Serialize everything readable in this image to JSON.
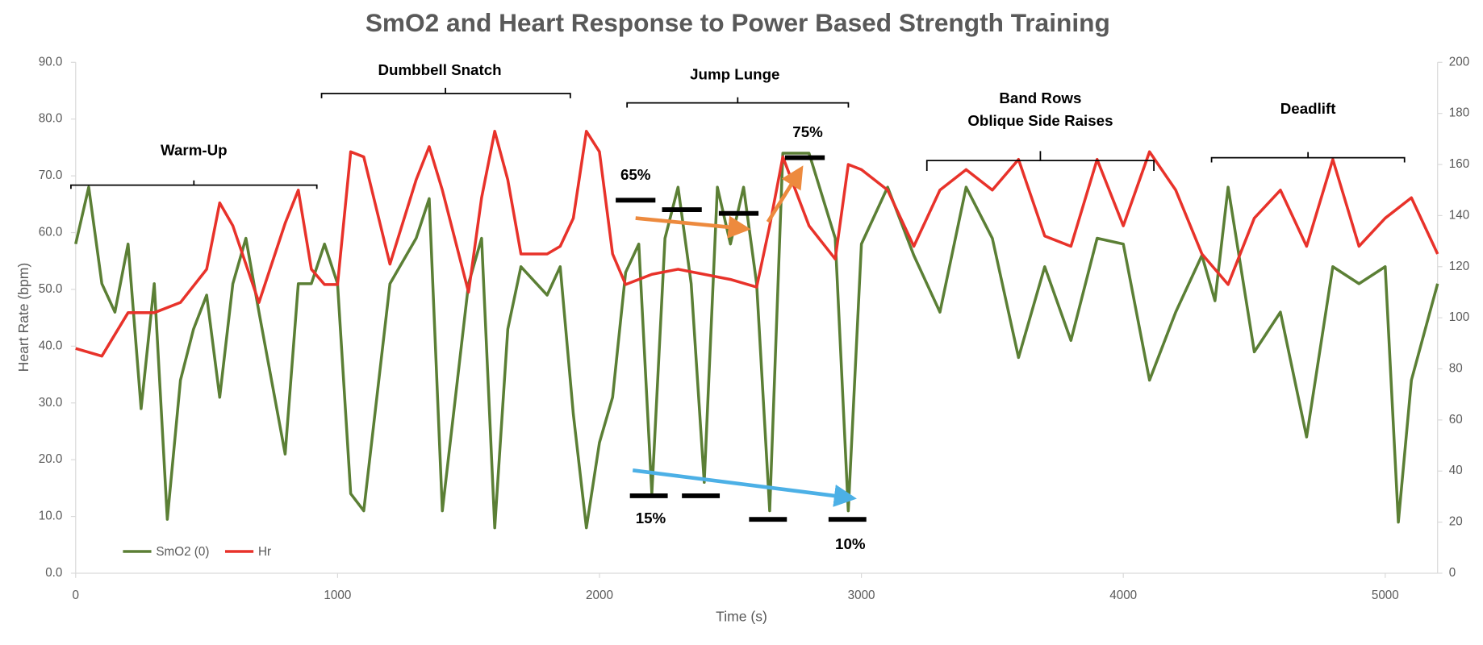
{
  "chart_data": {
    "type": "line",
    "title": "SmO2  and Heart Response to Power Based Strength Training",
    "xlabel": "Time (s)",
    "ylabel": "Heart Rate (bpm)",
    "xlim": [
      0,
      5200
    ],
    "xticks": [
      0,
      1000,
      2000,
      3000,
      4000,
      5000
    ],
    "ylim": [
      0,
      90
    ],
    "yticks": [
      {
        "value": 0,
        "label": "0.0"
      },
      {
        "value": 10,
        "label": "10.0"
      },
      {
        "value": 20,
        "label": "20.0"
      },
      {
        "value": 30,
        "label": "30.0"
      },
      {
        "value": 40,
        "label": "40.0"
      },
      {
        "value": 50,
        "label": "50.0"
      },
      {
        "value": 60,
        "label": "60.0"
      },
      {
        "value": 70,
        "label": "70.0"
      },
      {
        "value": 80,
        "label": "80.0"
      },
      {
        "value": 90,
        "label": "90.0"
      }
    ],
    "y2lim": [
      0,
      200
    ],
    "y2ticks": [
      0,
      20,
      40,
      60,
      80,
      100,
      120,
      140,
      160,
      180,
      200
    ],
    "legend": "lower left",
    "series": [
      {
        "name": "SmO2 (0)",
        "color": "#5b7f35",
        "axis": "y",
        "x": [
          0,
          50,
          100,
          150,
          200,
          250,
          300,
          350,
          400,
          450,
          500,
          550,
          600,
          650,
          700,
          800,
          850,
          900,
          950,
          1000,
          1050,
          1100,
          1200,
          1300,
          1350,
          1400,
          1500,
          1550,
          1600,
          1650,
          1700,
          1800,
          1850,
          1900,
          1950,
          2000,
          2050,
          2100,
          2150,
          2200,
          2250,
          2300,
          2350,
          2400,
          2450,
          2500,
          2550,
          2600,
          2650,
          2700,
          2800,
          2900,
          2950,
          3000,
          3100,
          3200,
          3300,
          3400,
          3500,
          3600,
          3700,
          3800,
          3900,
          4000,
          4100,
          4200,
          4300,
          4350,
          4400,
          4500,
          4600,
          4700,
          4800,
          4900,
          5000,
          5050,
          5100,
          5200
        ],
        "values": [
          58,
          68,
          51,
          46,
          58,
          29,
          51,
          9.5,
          34,
          43,
          49,
          31,
          51,
          59,
          46,
          21,
          51,
          51,
          58,
          51,
          14,
          11,
          51,
          59,
          66,
          11,
          51,
          59,
          8,
          43,
          54,
          49,
          54,
          28,
          8,
          23,
          31,
          53,
          58,
          14,
          59,
          68,
          51,
          16,
          68,
          58,
          68,
          51,
          11,
          74,
          74,
          59,
          11,
          58,
          68,
          56,
          46,
          68,
          59,
          38,
          54,
          41,
          59,
          58,
          34,
          46,
          56,
          48,
          68,
          39,
          46,
          24,
          54,
          51,
          54,
          9,
          34,
          51
        ]
      },
      {
        "name": "Hr",
        "color": "#e8322a",
        "axis": "y2",
        "x": [
          0,
          100,
          200,
          300,
          400,
          500,
          550,
          600,
          700,
          800,
          850,
          900,
          950,
          1000,
          1050,
          1100,
          1200,
          1300,
          1350,
          1400,
          1500,
          1550,
          1600,
          1650,
          1700,
          1800,
          1850,
          1900,
          1950,
          2000,
          2050,
          2100,
          2200,
          2300,
          2400,
          2500,
          2600,
          2650,
          2700,
          2800,
          2900,
          2950,
          3000,
          3100,
          3200,
          3300,
          3400,
          3500,
          3600,
          3700,
          3800,
          3900,
          4000,
          4100,
          4200,
          4300,
          4400,
          4500,
          4600,
          4700,
          4800,
          4900,
          5000,
          5100,
          5200
        ],
        "values": [
          88,
          85,
          102,
          102,
          106,
          119,
          145,
          136,
          106,
          137,
          150,
          119,
          113,
          113,
          165,
          163,
          121,
          154,
          167,
          150,
          110,
          147,
          173,
          154,
          125,
          125,
          128,
          139,
          173,
          165,
          125,
          113,
          117,
          119,
          117,
          115,
          112,
          136,
          163,
          136,
          123,
          160,
          158,
          150,
          128,
          150,
          158,
          150,
          162,
          132,
          128,
          162,
          136,
          165,
          150,
          125,
          113,
          139,
          150,
          128,
          162,
          128,
          139,
          147,
          125
        ]
      }
    ],
    "annotations": {
      "phases": [
        "Warm-Up",
        "Dumbbell Snatch",
        "Jump Lunge",
        "Band Rows",
        "Oblique Side Raises",
        "Deadlift"
      ],
      "percents": [
        "65%",
        "75%",
        "15%",
        "10%"
      ]
    }
  }
}
